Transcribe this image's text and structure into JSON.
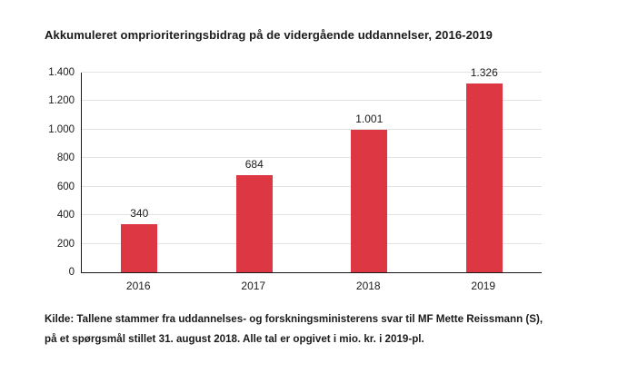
{
  "title": "Akkumuleret omprioriteringsbidrag på de vidergående uddannelser, 2016-2019",
  "source": {
    "line1": "Kilde: Tallene stammer fra uddannelses- og forskningsministerens svar til MF Mette Reissmann (S),",
    "line2": "på et spørgsmål stillet 31. august 2018. Alle tal er opgivet i mio. kr. i 2019-pl."
  },
  "colors": {
    "bar": "#de3744",
    "grid": "#e3e3e3",
    "axis": "#1a1a1a",
    "text": "#1a1a1a",
    "background": "#ffffff"
  },
  "chart_data": {
    "type": "bar",
    "title": "Akkumuleret omprioriteringsbidrag på de vidergående uddannelser, 2016-2019",
    "categories": [
      "2016",
      "2017",
      "2018",
      "2019"
    ],
    "values": [
      340,
      684,
      1001,
      1326
    ],
    "value_labels": [
      "340",
      "684",
      "1.001",
      "1.326"
    ],
    "xlabel": "",
    "ylabel": "",
    "ylim": [
      0,
      1400
    ],
    "ytick_step": 200,
    "ytick_labels": [
      "0",
      "200",
      "400",
      "600",
      "800",
      "1.000",
      "1.200",
      "1.400"
    ],
    "grid": "horizontal",
    "legend": "none",
    "bar_color": "#de3744",
    "source": "Kilde: Tallene stammer fra uddannelses- og forskningsministerens svar til MF Mette Reissmann (S), på et spørgsmål stillet 31. august 2018. Alle tal er opgivet i mio. kr. i 2019-pl."
  }
}
